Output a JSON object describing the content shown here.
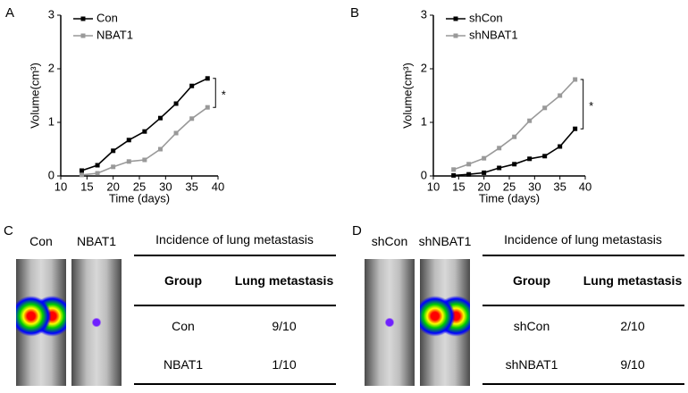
{
  "panel_labels": [
    "A",
    "B",
    "C",
    "D"
  ],
  "chart_data": [
    {
      "type": "line",
      "xlabel": "Time (days)",
      "ylabel": "Volume(cm³)",
      "x": [
        14,
        17,
        20,
        23,
        26,
        29,
        32,
        35,
        38
      ],
      "xlim": [
        10,
        40
      ],
      "xticks": [
        10,
        15,
        20,
        25,
        30,
        35,
        40
      ],
      "ylim": [
        0,
        3
      ],
      "yticks": [
        0,
        1,
        2,
        3
      ],
      "series": [
        {
          "name": "Con",
          "color": "#000000",
          "values": [
            0.1,
            0.2,
            0.47,
            0.67,
            0.83,
            1.08,
            1.35,
            1.68,
            1.82
          ]
        },
        {
          "name": "NBAT1",
          "color": "#999999",
          "values": [
            0.02,
            0.05,
            0.17,
            0.27,
            0.3,
            0.5,
            0.8,
            1.07,
            1.28
          ]
        }
      ],
      "annotation": "*"
    },
    {
      "type": "line",
      "xlabel": "Time (days)",
      "ylabel": "Volume(cm³)",
      "x": [
        14,
        17,
        20,
        23,
        26,
        29,
        32,
        35,
        38
      ],
      "xlim": [
        10,
        40
      ],
      "xticks": [
        10,
        15,
        20,
        25,
        30,
        35,
        40
      ],
      "ylim": [
        0,
        3
      ],
      "yticks": [
        0,
        1,
        2,
        3
      ],
      "series": [
        {
          "name": "shCon",
          "color": "#000000",
          "values": [
            0.01,
            0.03,
            0.06,
            0.15,
            0.22,
            0.32,
            0.37,
            0.55,
            0.88
          ]
        },
        {
          "name": "shNBAT1",
          "color": "#999999",
          "values": [
            0.12,
            0.22,
            0.33,
            0.52,
            0.73,
            1.03,
            1.27,
            1.5,
            1.8
          ]
        }
      ],
      "annotation": "*"
    }
  ],
  "panels": [
    {
      "image_labels": [
        "Con",
        "NBAT1"
      ],
      "table": {
        "title": "Incidence of lung metastasis",
        "header": [
          "Group",
          "Lung metastasis"
        ],
        "rows": [
          [
            "Con",
            "9/10"
          ],
          [
            "NBAT1",
            "1/10"
          ]
        ]
      }
    },
    {
      "image_labels": [
        "shCon",
        "shNBAT1"
      ],
      "table": {
        "title": "Incidence of lung metastasis",
        "header": [
          "Group",
          "Lung metastasis"
        ],
        "rows": [
          [
            "shCon",
            "2/10"
          ],
          [
            "shNBAT1",
            "9/10"
          ]
        ]
      }
    }
  ]
}
